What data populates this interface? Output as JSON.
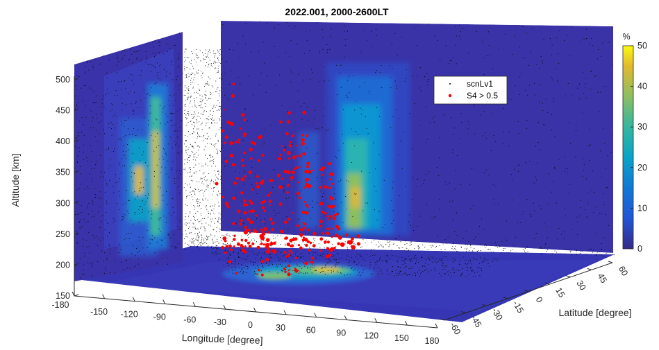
{
  "chart_data": {
    "type": "scatter",
    "title": "2022.001, 2000-2600LT",
    "xlabel": "Longitude [degree]",
    "ylabel": "Latitude [degree]",
    "zlabel": "Altitude [km]",
    "xlim": [
      -180,
      180
    ],
    "ylim": [
      -60,
      60
    ],
    "zlim": [
      150,
      500
    ],
    "x_ticks": [
      -180,
      -150,
      -120,
      -90,
      -60,
      -30,
      0,
      30,
      60,
      90,
      120,
      150,
      180
    ],
    "y_ticks": [
      -60,
      -45,
      -30,
      -15,
      0,
      15,
      30,
      45,
      60
    ],
    "z_ticks": [
      150,
      200,
      250,
      300,
      350,
      400,
      450,
      500
    ],
    "x_tick_labels": [
      "-180",
      "-150",
      "-120",
      "-90",
      "-60",
      "-30",
      "0",
      "30",
      "60",
      "90",
      "120",
      "150",
      "180"
    ],
    "y_tick_labels": [
      "-60",
      "-45",
      "-30",
      "-15",
      "0",
      "15",
      "30",
      "45",
      "60"
    ],
    "z_tick_labels": [
      "150",
      "200",
      "250",
      "300",
      "350",
      "400",
      "450",
      "500"
    ],
    "colorbar": {
      "unit": "%",
      "range": [
        0,
        50
      ],
      "ticks": [
        0,
        10,
        20,
        30,
        40,
        50
      ],
      "tick_labels": [
        "0",
        "10",
        "20",
        "30",
        "40",
        "50"
      ],
      "colormap": "parula"
    },
    "legend": {
      "placement": "inside upper-right",
      "entries": [
        "scnLv1",
        "S4 > 0.5"
      ]
    },
    "series": [
      {
        "name": "scnLv1",
        "marker": "dot",
        "color": "#000000"
      },
      {
        "name": "S4 > 0.5",
        "marker": "dot",
        "color": "#ff0000"
      }
    ],
    "projections": [
      {
        "plane": "altitude-latitude",
        "peak_lat": [
          -15,
          15
        ],
        "peak_alt": [
          220,
          440
        ]
      },
      {
        "plane": "altitude-longitude",
        "peak_lon": [
          30,
          75
        ],
        "peak_alt": [
          230,
          460
        ]
      },
      {
        "plane": "latitude-longitude",
        "peak_lon": [
          -20,
          100
        ],
        "peak_lat": [
          -15,
          10
        ]
      }
    ],
    "grid": false
  }
}
